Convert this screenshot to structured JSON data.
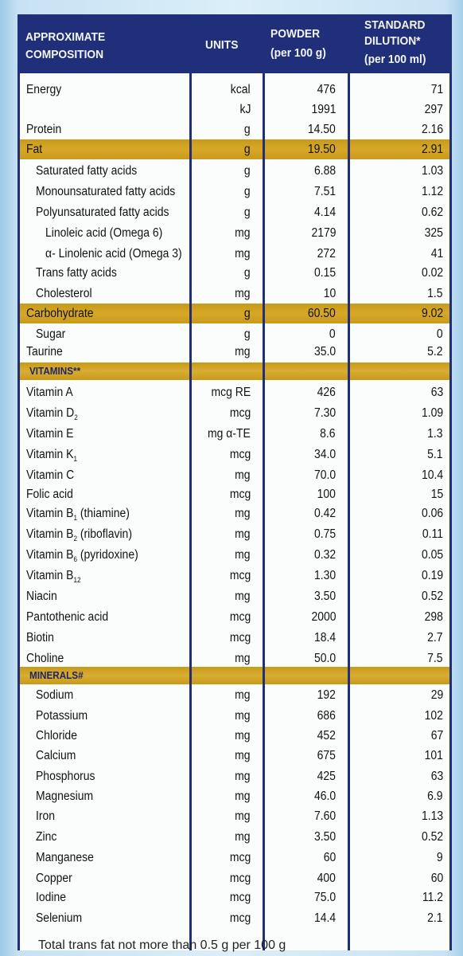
{
  "header": {
    "col0_line1": "APPROXIMATE",
    "col0_line2": "COMPOSITION",
    "col1": "UNITS",
    "col2_line1": "POWDER",
    "col2_line2": "(per 100 g)",
    "col3_line1": "STANDARD",
    "col3_line2": "DILUTION*",
    "col3_line3": "(per 100 ml)"
  },
  "rows": [
    {
      "name": "Energy",
      "unit": "kcal",
      "powder": "476",
      "dilution": "71"
    },
    {
      "name": "",
      "unit": "kJ",
      "powder": "1991",
      "dilution": "297"
    },
    {
      "name": "Protein",
      "unit": "g",
      "powder": "14.50",
      "dilution": "2.16"
    },
    {
      "name": "Fat",
      "unit": "g",
      "powder": "19.50",
      "dilution": "2.91"
    },
    {
      "name": "Saturated fatty acids",
      "unit": "g",
      "powder": "6.88",
      "dilution": "1.03"
    },
    {
      "name": "Monounsaturated fatty acids",
      "unit": "g",
      "powder": "7.51",
      "dilution": "1.12"
    },
    {
      "name": "Polyunsaturated fatty acids",
      "unit": "g",
      "powder": "4.14",
      "dilution": "0.62"
    },
    {
      "name": "Linoleic acid (Omega 6)",
      "unit": "mg",
      "powder": "2179",
      "dilution": "325"
    },
    {
      "name": "α- Linolenic acid (Omega 3)",
      "unit": "mg",
      "powder": "272",
      "dilution": "41"
    },
    {
      "name": "Trans fatty acids",
      "unit": "g",
      "powder": "0.15",
      "dilution": "0.02"
    },
    {
      "name": "Cholesterol",
      "unit": "mg",
      "powder": "10",
      "dilution": "1.5"
    },
    {
      "name": "Carbohydrate",
      "unit": "g",
      "powder": "60.50",
      "dilution": "9.02"
    },
    {
      "name": "Sugar",
      "unit": "g",
      "powder": "0",
      "dilution": "0"
    },
    {
      "name": "Taurine",
      "unit": "mg",
      "powder": "35.0",
      "dilution": "5.2"
    }
  ],
  "vitamins_header": "VITAMINS**",
  "vitamins": [
    {
      "name": "Vitamin A",
      "sub": "",
      "suffix": "",
      "unit": "mcg RE",
      "powder": "426",
      "dilution": "63"
    },
    {
      "name": "Vitamin D",
      "sub": "2",
      "suffix": "",
      "unit": "mcg",
      "powder": "7.30",
      "dilution": "1.09"
    },
    {
      "name": "Vitamin E",
      "sub": "",
      "suffix": "",
      "unit": "mg α-TE",
      "powder": "8.6",
      "dilution": "1.3"
    },
    {
      "name": "Vitamin K",
      "sub": "1",
      "suffix": "",
      "unit": "mcg",
      "powder": "34.0",
      "dilution": "5.1"
    },
    {
      "name": "Vitamin C",
      "sub": "",
      "suffix": "",
      "unit": "mg",
      "powder": "70.0",
      "dilution": "10.4"
    },
    {
      "name": "Folic acid",
      "sub": "",
      "suffix": "",
      "unit": "mcg",
      "powder": "100",
      "dilution": "15"
    },
    {
      "name": "Vitamin B",
      "sub": "1",
      "suffix": "(thiamine)",
      "unit": "mg",
      "powder": "0.42",
      "dilution": "0.06"
    },
    {
      "name": "Vitamin B",
      "sub": "2",
      "suffix": "(riboflavin)",
      "unit": "mg",
      "powder": "0.75",
      "dilution": "0.11"
    },
    {
      "name": "Vitamin B",
      "sub": "6",
      "suffix": "(pyridoxine)",
      "unit": "mg",
      "powder": "0.32",
      "dilution": "0.05"
    },
    {
      "name": "Vitamin B",
      "sub": "12",
      "suffix": "",
      "unit": "mcg",
      "powder": "1.30",
      "dilution": "0.19"
    },
    {
      "name": "Niacin",
      "sub": "",
      "suffix": "",
      "unit": "mg",
      "powder": "3.50",
      "dilution": "0.52"
    },
    {
      "name": "Pantothenic acid",
      "sub": "",
      "suffix": "",
      "unit": "mcg",
      "powder": "2000",
      "dilution": "298"
    },
    {
      "name": "Biotin",
      "sub": "",
      "suffix": "",
      "unit": "mcg",
      "powder": "18.4",
      "dilution": "2.7"
    },
    {
      "name": "Choline",
      "sub": "",
      "suffix": "",
      "unit": "mg",
      "powder": "50.0",
      "dilution": "7.5"
    }
  ],
  "minerals_header": "MINERALS#",
  "minerals": [
    {
      "name": "Sodium",
      "unit": "mg",
      "powder": "192",
      "dilution": "29"
    },
    {
      "name": "Potassium",
      "unit": "mg",
      "powder": "686",
      "dilution": "102"
    },
    {
      "name": "Chloride",
      "unit": "mg",
      "powder": "452",
      "dilution": "67"
    },
    {
      "name": "Calcium",
      "unit": "mg",
      "powder": "675",
      "dilution": "101"
    },
    {
      "name": "Phosphorus",
      "unit": "mg",
      "powder": "425",
      "dilution": "63"
    },
    {
      "name": "Magnesium",
      "unit": "mg",
      "powder": "46.0",
      "dilution": "6.9"
    },
    {
      "name": "Iron",
      "unit": "mg",
      "powder": "7.60",
      "dilution": "1.13"
    },
    {
      "name": "Zinc",
      "unit": "mg",
      "powder": "3.50",
      "dilution": "0.52"
    },
    {
      "name": "Manganese",
      "unit": "mcg",
      "powder": "60",
      "dilution": "9"
    },
    {
      "name": "Copper",
      "unit": "mcg",
      "powder": "400",
      "dilution": "60"
    },
    {
      "name": "Iodine",
      "unit": "mcg",
      "powder": "75.0",
      "dilution": "11.2"
    },
    {
      "name": "Selenium",
      "unit": "mcg",
      "powder": "14.4",
      "dilution": "2.1"
    }
  ],
  "footer": "Total trans fat not more than 0.5 g per 100 g"
}
